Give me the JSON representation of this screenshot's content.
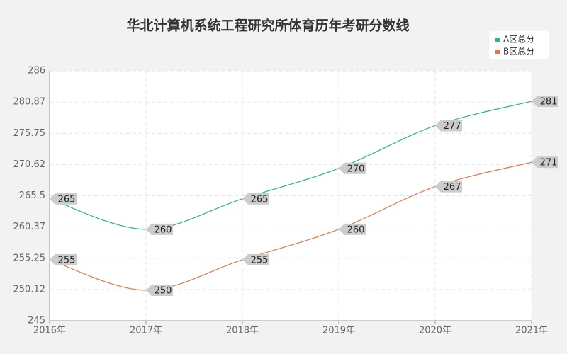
{
  "chart_data": {
    "type": "line",
    "title": "华北计算机系统工程研究所体育历年考研分数线",
    "categories": [
      "2016年",
      "2017年",
      "2018年",
      "2019年",
      "2020年",
      "2021年"
    ],
    "series": [
      {
        "name": "A区总分",
        "color": "#2db482",
        "values": [
          265,
          260,
          265,
          270,
          277,
          281
        ]
      },
      {
        "name": "B区总分",
        "color": "#e4763f",
        "values": [
          255,
          250,
          255,
          260,
          267,
          271
        ]
      }
    ],
    "ylim": [
      245,
      286
    ],
    "yticks": [
      245,
      250.12,
      255.25,
      260.37,
      265.5,
      270.62,
      275.75,
      280.87,
      286
    ],
    "grid": true,
    "legend": "top-right",
    "smooth": true
  }
}
